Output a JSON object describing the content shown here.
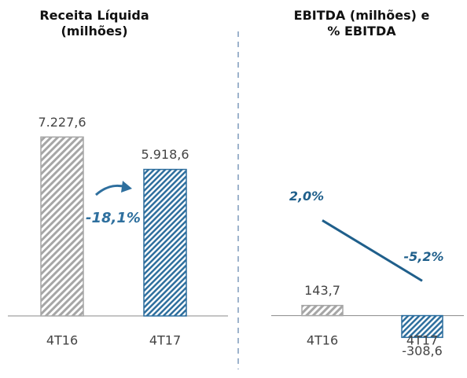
{
  "chart_data": [
    {
      "type": "bar",
      "title": "Receita Líquida\n(milhões)",
      "categories": [
        "4T16",
        "4T17"
      ],
      "series": [
        {
          "type": "bar",
          "values": [
            7227.6,
            5918.6
          ],
          "value_labels": [
            "7.227,6",
            "5.918,6"
          ],
          "colors": [
            "#a6a6a6",
            "#2e6f9e"
          ]
        }
      ],
      "annotation": "-18,1%",
      "ylim": [
        -1840,
        8000
      ]
    },
    {
      "type": "bar",
      "title": "EBITDA (milhões) e\n% EBITDA",
      "categories": [
        "4T16",
        "4T17"
      ],
      "series": [
        {
          "type": "bar",
          "values": [
            143.7,
            -308.6
          ],
          "value_labels": [
            "143,7",
            "-308,6"
          ],
          "colors": [
            "#a6a6a6",
            "#2e6f9e"
          ]
        },
        {
          "type": "line",
          "axis": "y2",
          "values": [
            2.0,
            -5.2
          ],
          "value_labels": [
            "2,0%",
            "-5,2%"
          ],
          "color": "#1f5f8b"
        }
      ],
      "ylim": [
        -650,
        2800
      ],
      "y2lim": [
        -14.8,
        14.2
      ]
    }
  ]
}
